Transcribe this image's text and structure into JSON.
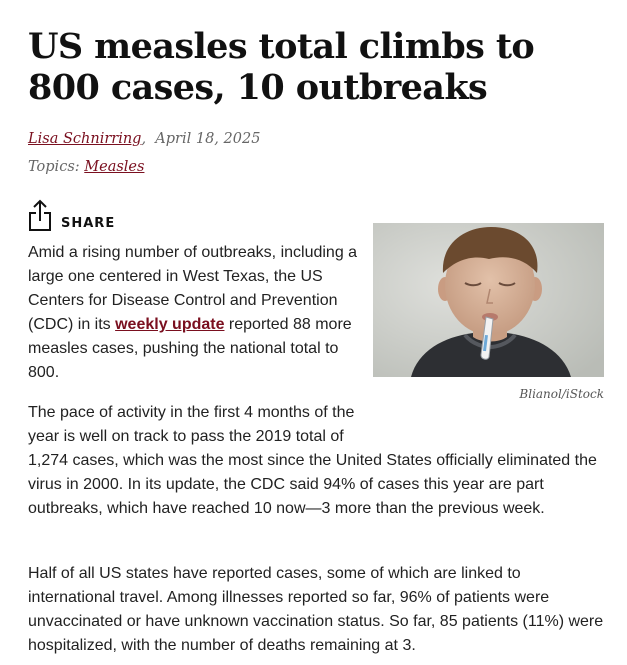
{
  "article": {
    "headline": "US measles total climbs to 800 cases, 10 outbreaks",
    "author": "Lisa Schnirring",
    "byline_sep": ",",
    "date": "April 18, 2025",
    "topics_label": "Topics:",
    "topic": "Measles"
  },
  "share": {
    "icon": "share-icon",
    "label": "SHARE"
  },
  "image": {
    "credit": "Blianol/iStock",
    "colors": {
      "background": "#cfd1cc",
      "shirt": "#2d2f33",
      "skin": "#d8b49c",
      "hair": "#6b4a2f"
    }
  },
  "body": {
    "p1_before": "Amid a rising number of outbreaks, including a large one centered in West Texas, the US Centers for Disease Control and Prevention (CDC) in its ",
    "p1_link": "weekly update",
    "p1_after": " reported 88 more measles cases, pushing the national total to 800.",
    "p2": "The pace of activity in the first 4 months of the year is well on track to pass the 2019 total of 1,274 cases, which was the most since the United States officially eliminated the virus in 2000. In its update, the CDC said 94% of cases this year are part outbreaks, which have reached 10 now—3 more than the previous week.",
    "p3": "Half of all US states have reported cases, some of which are linked to international travel. Among illnesses reported so far, 96% of patients were unvaccinated or have unknown vaccination status. So far, 85 patients (11%) were hospitalized, with the number of deaths remaining at 3."
  },
  "colors": {
    "link": "#7a0f1f",
    "text": "#222222",
    "meta": "#666666"
  }
}
